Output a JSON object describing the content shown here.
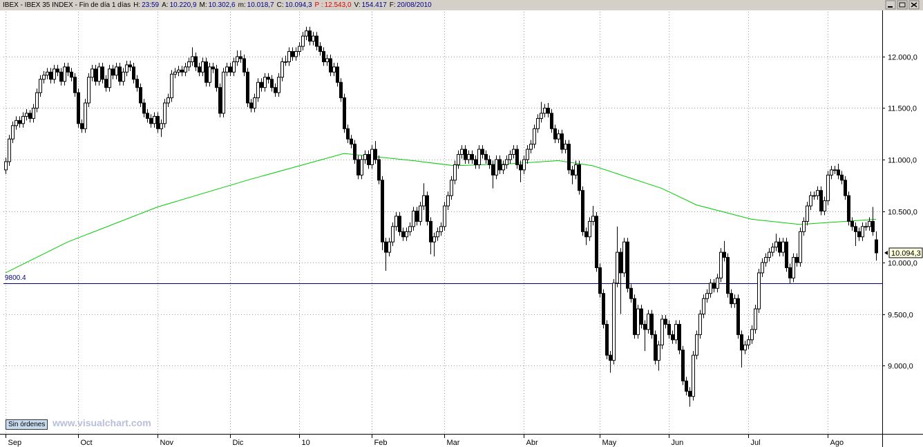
{
  "chart_data": {
    "type": "candlestick",
    "title": "IBEX - IBEX 35 INDEX - Fin de día 1 días",
    "header_items": [
      {
        "label": "H:",
        "value": "23:59"
      },
      {
        "label": "A:",
        "value": "10.220,9"
      },
      {
        "label": "M:",
        "value": "10.302,6"
      },
      {
        "label": "m:",
        "value": "10.018,7"
      },
      {
        "label": "C:",
        "value": "10.094,3"
      },
      {
        "label": "P :",
        "value": "12.543,0"
      },
      {
        "label": "V:",
        "value": "154.417"
      },
      {
        "label": "F:",
        "value": "20/08/2010"
      }
    ],
    "xlim": [
      -0.6,
      253.8
    ],
    "xticks": [
      {
        "value": 0,
        "label": "Sep"
      },
      {
        "value": 21,
        "label": "Oct"
      },
      {
        "value": 44,
        "label": "Nov"
      },
      {
        "value": 65,
        "label": "Dic"
      },
      {
        "value": 85,
        "label": "10"
      },
      {
        "value": 106,
        "label": "Feb"
      },
      {
        "value": 127,
        "label": "Mar"
      },
      {
        "value": 150,
        "label": "Abr"
      },
      {
        "value": 172,
        "label": "May"
      },
      {
        "value": 192,
        "label": "Jun"
      },
      {
        "value": 215,
        "label": "Jul"
      },
      {
        "value": 238,
        "label": "Ago"
      }
    ],
    "ylim": [
      8336,
      12436
    ],
    "yticks": [
      {
        "value": 9000,
        "label": "9.000,0"
      },
      {
        "value": 9500,
        "label": "9.500,0"
      },
      {
        "value": 10000,
        "label": "10.000,0"
      },
      {
        "value": 10500,
        "label": "10.500,0"
      },
      {
        "value": 11000,
        "label": "11.000,0"
      },
      {
        "value": 11500,
        "label": "11.500,0"
      },
      {
        "value": 12000,
        "label": "12.000,0"
      }
    ],
    "grid": true,
    "up_color": "#ffffff",
    "down_color": "#000000",
    "open": [
      10900,
      10980,
      11200,
      11330,
      11380,
      11350,
      11420,
      11450,
      11400,
      11500,
      11650,
      11780,
      11820,
      11850,
      11780,
      11880,
      11850,
      11760,
      11900,
      11850,
      11800,
      11650,
      11350,
      11300,
      11550,
      11800,
      11880,
      11760,
      11900,
      11780,
      11700,
      11880,
      11820,
      11900,
      11760,
      11850,
      11920,
      11900,
      11780,
      11700,
      11550,
      11450,
      11400,
      11350,
      11420,
      11300,
      11350,
      11550,
      11600,
      11830,
      11850,
      11870,
      11850,
      11900,
      11950,
      12000,
      11900,
      11850,
      11950,
      11750,
      11900,
      11880,
      11700,
      11450,
      11850,
      11900,
      11850,
      11950,
      12000,
      11980,
      11850,
      11550,
      11500,
      11600,
      11750,
      11700,
      11800,
      11780,
      11700,
      11650,
      11800,
      11950,
      11950,
      12050,
      12000,
      12050,
      12100,
      12200,
      12250,
      12150,
      12200,
      12100,
      12050,
      11950,
      11980,
      11850,
      11900,
      11750,
      11600,
      11300,
      11200,
      11150,
      11000,
      10850,
      11000,
      11050,
      10950,
      11100,
      11000,
      10800,
      10200,
      10100,
      10200,
      10350,
      10450,
      10300,
      10250,
      10300,
      10350,
      10500,
      10400,
      10550,
      10650,
      10400,
      10200,
      10250,
      10300,
      10350,
      10550,
      10650,
      10800,
      10950,
      11050,
      11100,
      11000,
      11050,
      11000,
      10950,
      11100,
      11050,
      11000,
      10950,
      10850,
      11000,
      10900,
      10950,
      11000,
      11050,
      11100,
      10950,
      10900,
      11000,
      11100,
      11150,
      11300,
      11400,
      11450,
      11500,
      11450,
      11300,
      11200,
      11250,
      11100,
      11150,
      10900,
      10850,
      10950,
      10700,
      10300,
      10250,
      10400,
      10450,
      9950,
      9700,
      9400,
      9100,
      9050,
      9800,
      10100,
      9900,
      10200,
      9750,
      9650,
      9300,
      9550,
      9400,
      9350,
      9500,
      9300,
      9050,
      9200,
      9450,
      9400,
      9300,
      9250,
      9400,
      9150,
      8850,
      8750,
      8700,
      9100,
      9300,
      9500,
      9650,
      9700,
      9800,
      9750,
      9850,
      10100,
      10050,
      9700,
      9600,
      9650,
      9300,
      9150,
      9200,
      9250,
      9350,
      9550,
      9900,
      10000,
      10050,
      10100,
      10150,
      10200,
      10100,
      10200,
      9950,
      9850,
      10050,
      10000,
      10300,
      10400,
      10550,
      10650,
      10650,
      10700,
      10500,
      10600,
      10850,
      10900,
      10900,
      10850,
      10800,
      10650,
      10400,
      10350,
      10300,
      10250,
      10350,
      10350,
      10400,
      10220.9
    ],
    "high": [
      11020,
      11240,
      11370,
      11420,
      11420,
      11460,
      11490,
      11480,
      11540,
      11690,
      11820,
      11860,
      11890,
      11890,
      11920,
      11920,
      11890,
      11940,
      11940,
      11890,
      11840,
      11690,
      11390,
      11590,
      11840,
      11920,
      11920,
      11940,
      11940,
      11820,
      11920,
      11920,
      11940,
      11940,
      11890,
      11960,
      11960,
      11940,
      11820,
      11740,
      11590,
      11490,
      11440,
      11460,
      11460,
      11390,
      11590,
      11640,
      11870,
      11890,
      11910,
      11910,
      11940,
      11990,
      12090,
      12040,
      11940,
      11990,
      11990,
      11940,
      11940,
      11920,
      11740,
      11890,
      11940,
      11940,
      11990,
      12060,
      12060,
      12020,
      11890,
      11590,
      11640,
      11790,
      11790,
      11840,
      11840,
      11820,
      11740,
      11840,
      11990,
      12010,
      12090,
      12090,
      12090,
      12140,
      12240,
      12290,
      12290,
      12240,
      12240,
      12140,
      12090,
      12020,
      12020,
      11940,
      11940,
      11790,
      11640,
      11340,
      11240,
      11190,
      11040,
      11040,
      11090,
      11090,
      11140,
      11180,
      11040,
      10840,
      10240,
      10240,
      10390,
      10490,
      10490,
      10340,
      10340,
      10390,
      10540,
      10540,
      10590,
      10770,
      10690,
      10440,
      10290,
      10340,
      10390,
      10590,
      10690,
      10840,
      10990,
      11090,
      11140,
      11140,
      11090,
      11090,
      11040,
      11140,
      11140,
      11090,
      11040,
      10990,
      11040,
      11040,
      10990,
      11040,
      11090,
      11140,
      11140,
      10990,
      11040,
      11140,
      11190,
      11340,
      11440,
      11560,
      11540,
      11550,
      11490,
      11340,
      11290,
      11290,
      11190,
      11190,
      10940,
      10990,
      10990,
      10740,
      10340,
      10440,
      10550,
      10490,
      9990,
      9740,
      9440,
      9140,
      9840,
      10350,
      10140,
      10240,
      10240,
      9790,
      9690,
      9590,
      9590,
      9440,
      9540,
      9540,
      9340,
      9240,
      9490,
      9490,
      9440,
      9340,
      9440,
      9440,
      9190,
      8890,
      8790,
      9140,
      9340,
      9540,
      9690,
      9740,
      9840,
      9840,
      9890,
      10140,
      10210,
      10090,
      9740,
      9690,
      9690,
      9340,
      9240,
      9290,
      9390,
      9590,
      9940,
      10040,
      10090,
      10140,
      10190,
      10280,
      10240,
      10240,
      10240,
      9990,
      10090,
      10090,
      10340,
      10440,
      10590,
      10690,
      10690,
      10740,
      10740,
      10640,
      10890,
      10940,
      10940,
      10960,
      10890,
      10840,
      10690,
      10440,
      10390,
      10340,
      10390,
      10390,
      10440,
      10540,
      10302.6
    ],
    "low": [
      10860,
      10940,
      11160,
      11290,
      11310,
      11310,
      11380,
      11360,
      11360,
      11460,
      11610,
      11740,
      11780,
      11740,
      11740,
      11810,
      11720,
      11720,
      11810,
      11760,
      11610,
      11310,
      11260,
      11260,
      11510,
      11760,
      11720,
      11720,
      11740,
      11660,
      11660,
      11780,
      11780,
      11720,
      11720,
      11810,
      11860,
      11740,
      11660,
      11510,
      11410,
      11360,
      11310,
      11310,
      11260,
      11220,
      11310,
      11510,
      11560,
      11790,
      11810,
      11810,
      11810,
      11860,
      11910,
      11860,
      11810,
      11810,
      11710,
      11710,
      11840,
      11660,
      11410,
      11410,
      11810,
      11810,
      11810,
      11910,
      11940,
      11810,
      11510,
      11460,
      11460,
      11560,
      11660,
      11660,
      11740,
      11660,
      11610,
      11610,
      11760,
      11910,
      11910,
      11960,
      11960,
      12010,
      12060,
      12160,
      12110,
      12110,
      12060,
      12010,
      11910,
      11910,
      11810,
      11810,
      11710,
      11560,
      11260,
      11160,
      11110,
      10960,
      10810,
      10810,
      10960,
      10910,
      10910,
      10960,
      10760,
      10120,
      9920,
      10060,
      10160,
      10310,
      10260,
      10210,
      10210,
      10260,
      10310,
      10360,
      10360,
      10510,
      10360,
      10080,
      10060,
      10210,
      10260,
      10310,
      10510,
      10610,
      10760,
      10910,
      11010,
      10960,
      10960,
      10960,
      10910,
      10910,
      11010,
      10960,
      10910,
      10720,
      10810,
      10860,
      10860,
      10910,
      10960,
      11010,
      10910,
      10780,
      10860,
      10960,
      11060,
      11110,
      11260,
      11360,
      11410,
      11410,
      11260,
      11160,
      11160,
      11060,
      11060,
      10860,
      10760,
      10810,
      10660,
      10260,
      10170,
      10210,
      10360,
      9910,
      9660,
      9360,
      9060,
      8930,
      9010,
      9760,
      9500,
      9860,
      9710,
      9610,
      9260,
      9260,
      9360,
      9140,
      9310,
      9260,
      9010,
      8950,
      9160,
      9360,
      9260,
      9210,
      9210,
      9110,
      8810,
      8710,
      8600,
      8660,
      9060,
      9260,
      9460,
      9610,
      9660,
      9710,
      9710,
      9810,
      10010,
      9660,
      9560,
      9560,
      9260,
      8980,
      9110,
      9160,
      9210,
      9310,
      9510,
      9860,
      9960,
      10010,
      10060,
      10110,
      10060,
      10060,
      9910,
      9800,
      9810,
      9960,
      9960,
      10260,
      10360,
      10510,
      10610,
      10610,
      10460,
      10460,
      10560,
      10810,
      10860,
      10810,
      10760,
      10610,
      10360,
      10310,
      10160,
      10210,
      10210,
      10310,
      10310,
      10260,
      10018.7
    ],
    "close": [
      10980,
      11200,
      11330,
      11380,
      11350,
      11420,
      11450,
      11400,
      11500,
      11650,
      11780,
      11820,
      11850,
      11780,
      11880,
      11850,
      11760,
      11900,
      11850,
      11800,
      11650,
      11350,
      11300,
      11550,
      11800,
      11880,
      11760,
      11900,
      11780,
      11700,
      11880,
      11820,
      11900,
      11760,
      11850,
      11920,
      11900,
      11780,
      11700,
      11550,
      11450,
      11400,
      11350,
      11420,
      11300,
      11350,
      11550,
      11600,
      11830,
      11850,
      11870,
      11850,
      11900,
      11950,
      12000,
      11900,
      11850,
      11950,
      11750,
      11900,
      11880,
      11700,
      11450,
      11850,
      11900,
      11850,
      11950,
      12000,
      11980,
      11850,
      11550,
      11500,
      11600,
      11750,
      11700,
      11800,
      11780,
      11700,
      11650,
      11800,
      11950,
      11950,
      12050,
      12000,
      12050,
      12100,
      12200,
      12250,
      12150,
      12200,
      12100,
      12050,
      11950,
      11980,
      11850,
      11900,
      11750,
      11600,
      11300,
      11200,
      11150,
      11000,
      10850,
      11000,
      11050,
      10950,
      11100,
      11000,
      10800,
      10200,
      10100,
      10200,
      10350,
      10450,
      10300,
      10250,
      10300,
      10350,
      10500,
      10400,
      10550,
      10650,
      10400,
      10200,
      10250,
      10300,
      10350,
      10550,
      10650,
      10800,
      10950,
      11050,
      11100,
      11000,
      11050,
      11000,
      10950,
      11100,
      11050,
      11000,
      10950,
      10850,
      11000,
      10900,
      10950,
      11000,
      11050,
      11100,
      10950,
      10900,
      11000,
      11100,
      11150,
      11300,
      11400,
      11450,
      11500,
      11450,
      11300,
      11200,
      11250,
      11100,
      11150,
      10900,
      10850,
      10950,
      10700,
      10300,
      10250,
      10400,
      10450,
      9950,
      9700,
      9400,
      9100,
      9050,
      9800,
      10100,
      9900,
      10200,
      9750,
      9650,
      9300,
      9550,
      9400,
      9350,
      9500,
      9300,
      9050,
      9200,
      9450,
      9400,
      9300,
      9250,
      9400,
      9150,
      8850,
      8750,
      8700,
      9100,
      9300,
      9500,
      9650,
      9700,
      9800,
      9750,
      9850,
      10100,
      10050,
      9700,
      9600,
      9650,
      9300,
      9150,
      9200,
      9250,
      9350,
      9550,
      9900,
      10000,
      10050,
      10100,
      10150,
      10200,
      10100,
      10200,
      9950,
      9850,
      10050,
      10000,
      10300,
      10400,
      10550,
      10650,
      10650,
      10700,
      10500,
      10600,
      10850,
      10900,
      10900,
      10850,
      10800,
      10650,
      10400,
      10350,
      10300,
      10250,
      10350,
      10350,
      10400,
      10300,
      10094.3
    ],
    "ma": {
      "color": "#00cc00",
      "x": [
        0,
        18,
        44,
        70,
        98,
        118,
        130,
        146,
        160,
        170,
        190,
        200,
        216,
        230,
        252
      ],
      "values": [
        9900,
        10200,
        10540,
        10800,
        11060,
        10990,
        10940,
        10960,
        10990,
        10940,
        10720,
        10560,
        10420,
        10370,
        10420
      ]
    },
    "hline": {
      "value": 9800.4,
      "color": "#000080"
    },
    "last_price": {
      "value": 10094.3,
      "label": "10.094,3"
    }
  },
  "toolbar": {
    "button": "Sin órdenes",
    "watermark": "www.visualchart.com"
  }
}
